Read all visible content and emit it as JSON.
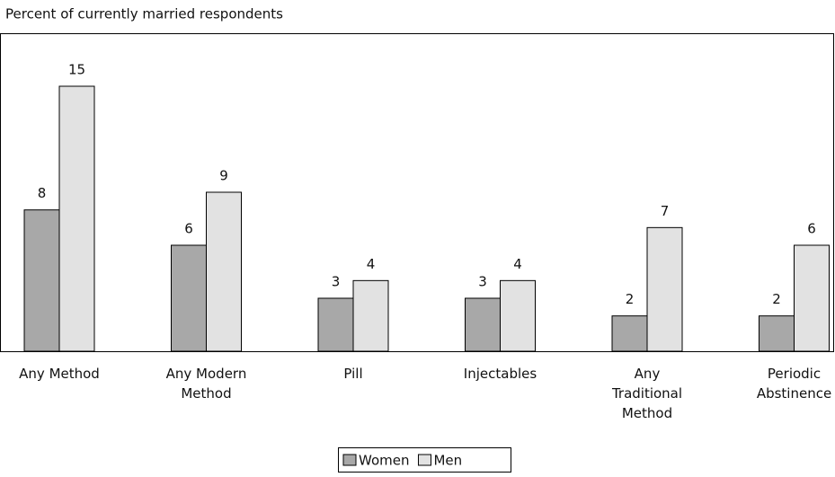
{
  "chart_data": {
    "type": "bar",
    "y_label": "Percent of currently married respondents",
    "categories": [
      "Any Method",
      "Any Modern Method",
      "Pill",
      "Injectables",
      "Any Traditional Method",
      "Periodic Abstinence"
    ],
    "series": [
      {
        "name": "Women",
        "color": "#a8a8a8",
        "values": [
          8,
          6,
          3,
          3,
          2,
          2
        ]
      },
      {
        "name": "Men",
        "color": "#e2e2e2",
        "values": [
          15,
          9,
          4,
          4,
          7,
          6
        ]
      }
    ],
    "ylim": [
      0,
      18
    ]
  }
}
